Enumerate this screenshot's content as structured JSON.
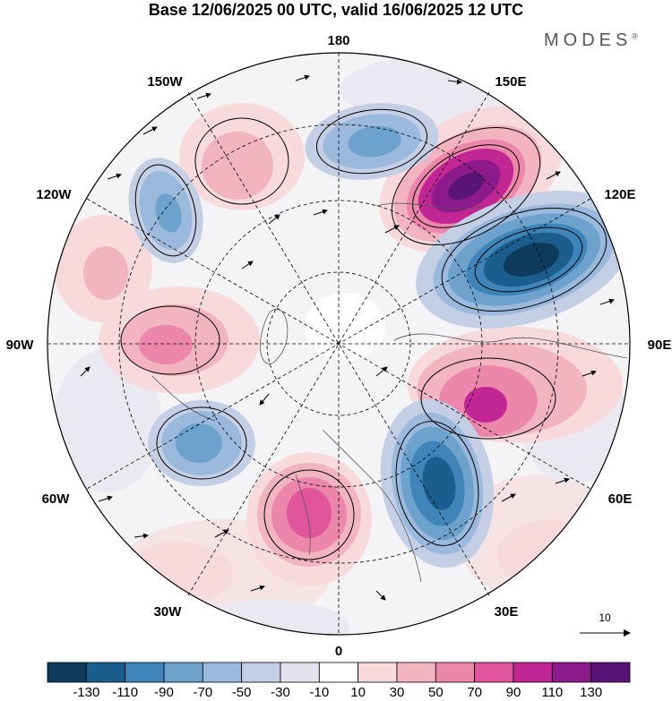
{
  "title": "Base 12/06/2025 00 UTC, valid 16/06/2025 12 UTC",
  "brand": {
    "name": "MODES",
    "mark": "®"
  },
  "longitude_labels": {
    "top": "180",
    "bottom": "0",
    "left": "90W",
    "right": "90E",
    "nw_high": "150W",
    "ne_high": "150E",
    "nw_low": "120W",
    "ne_low": "120E",
    "sw_high": "60W",
    "se_high": "60E",
    "sw_low": "30W",
    "se_low": "30E"
  },
  "reference_vector": {
    "label": "10"
  },
  "colorbar": {
    "levels": [
      "-130",
      "-110",
      "-90",
      "-70",
      "-50",
      "-30",
      "-10",
      "10",
      "30",
      "50",
      "70",
      "90",
      "110",
      "130"
    ],
    "colors": [
      "#0e3a5c",
      "#1b5e8e",
      "#3f85b9",
      "#6da2cc",
      "#9ab9dc",
      "#c4cfe6",
      "#e3e3ef",
      "#ffffff",
      "#f8dadd",
      "#f1b4c0",
      "#ec86aa",
      "#e0559c",
      "#c22594",
      "#8c1a8a",
      "#5a1478"
    ]
  },
  "map": {
    "field_description_colors": {
      "negative_strong": "#0e3a5c",
      "positive_strong": "#7a1685"
    }
  }
}
